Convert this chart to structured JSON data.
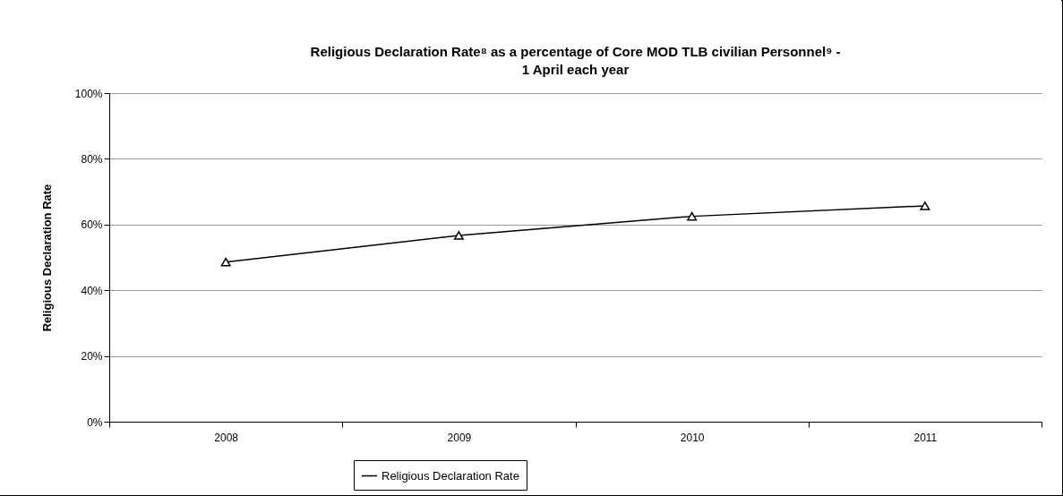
{
  "chart_data": {
    "type": "line",
    "title": "Religious Declaration Rate⁸ as a percentage of Core MOD TLB civilian Personnel⁹ - 1 April each year",
    "ylabel": "Religious Declaration Rate",
    "categories": [
      "2008",
      "2009",
      "2010",
      "2011"
    ],
    "series": [
      {
        "name": "Religious Declaration Rate",
        "color": "#000000",
        "values": [
          48.6,
          56.7,
          62.5,
          65.7
        ]
      }
    ],
    "ylim": [
      0,
      100
    ],
    "yticks": [
      {
        "value": 0,
        "label": "0%"
      },
      {
        "value": 20,
        "label": "20%"
      },
      {
        "value": 40,
        "label": "40%"
      },
      {
        "value": 60,
        "label": "60%"
      },
      {
        "value": 80,
        "label": "80%"
      },
      {
        "value": 100,
        "label": "100%"
      }
    ],
    "grid": "y",
    "legend": "bottom",
    "marker": "triangle",
    "line_style": "solid"
  }
}
